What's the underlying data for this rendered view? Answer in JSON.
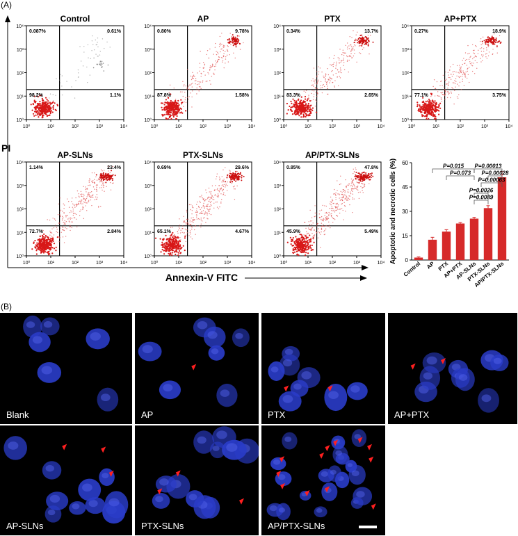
{
  "panels": {
    "a": "(A)",
    "b": "(B)"
  },
  "flow": {
    "y_axis_label": "PI",
    "x_axis_label": "Annexin-V FITC",
    "tick_labels": [
      "10⁰",
      "10¹",
      "10²",
      "10³",
      "10⁴"
    ],
    "plots": [
      {
        "title": "Control",
        "ul": "0.087%",
        "ur": "0.61%",
        "ll": "98.2%",
        "lr": "1.1%",
        "density": 0.05
      },
      {
        "title": "AP",
        "ul": "0.80%",
        "ur": "9.78%",
        "ll": "87.8%",
        "lr": "1.58%",
        "density": 0.45
      },
      {
        "title": "PTX",
        "ul": "0.34%",
        "ur": "13.7%",
        "ll": "83.3%",
        "lr": "2.65%",
        "density": 0.55
      },
      {
        "title": "AP+PTX",
        "ul": "0.27%",
        "ur": "18.9%",
        "ll": "77.1%",
        "lr": "3.75%",
        "density": 0.62
      },
      {
        "title": "AP-SLNs",
        "ul": "1.14%",
        "ur": "23.4%",
        "ll": "72.7%",
        "lr": "2.84%",
        "density": 0.75
      },
      {
        "title": "PTX-SLNs",
        "ul": "0.69%",
        "ur": "29.6%",
        "ll": "65.1%",
        "lr": "4.67%",
        "density": 0.8
      },
      {
        "title": "AP/PTX-SLNs",
        "ul": "0.85%",
        "ur": "47.8%",
        "ll": "45.9%",
        "lr": "5.49%",
        "density": 0.95
      }
    ]
  },
  "chart_data": {
    "type": "bar",
    "categories": [
      "Control",
      "AP",
      "PTX",
      "AP+PTX",
      "AP-SLNs",
      "PTX-SLNs",
      "AP/PTX-SLNs"
    ],
    "values": [
      1.5,
      12.5,
      17.5,
      22.5,
      25.5,
      32,
      51
    ],
    "errors": [
      0.4,
      1.5,
      1.2,
      0.6,
      0.8,
      1.5,
      3.5
    ],
    "ylabel": "Apoptotic and necrotic cells (%)",
    "xlabel": "",
    "ylim": [
      0,
      60
    ],
    "yticks": [
      0,
      15,
      30,
      45,
      60
    ],
    "bar_color": "#d62a2a",
    "annotations": [
      {
        "text": "P=0.015",
        "from": 1,
        "to": 4
      },
      {
        "text": "P=0.073",
        "from": 2,
        "to": 4
      },
      {
        "text": "P=0.00013",
        "from": 4,
        "to": 6
      },
      {
        "text": "P=0.00028",
        "from": 5,
        "to": 6
      },
      {
        "text": "P=0.00063",
        "from": 4.5,
        "to": 6
      },
      {
        "text": "P=0.0026",
        "from": 4,
        "to": 5
      },
      {
        "text": "P=0.0089",
        "from": 4,
        "to": 5
      }
    ]
  },
  "fluorescence": {
    "nucleus_color": "#2a3cc8",
    "arrow_color": "#ff2020",
    "images": [
      {
        "label": "Blank",
        "arrows": 0
      },
      {
        "label": "AP",
        "arrows": 1
      },
      {
        "label": "PTX",
        "arrows": 2
      },
      {
        "label": "AP+PTX",
        "arrows": 2
      },
      {
        "label": "AP-SLNs",
        "arrows": 3
      },
      {
        "label": "PTX-SLNs",
        "arrows": 3
      },
      {
        "label": "AP/PTX-SLNs",
        "arrows": 12
      }
    ]
  }
}
